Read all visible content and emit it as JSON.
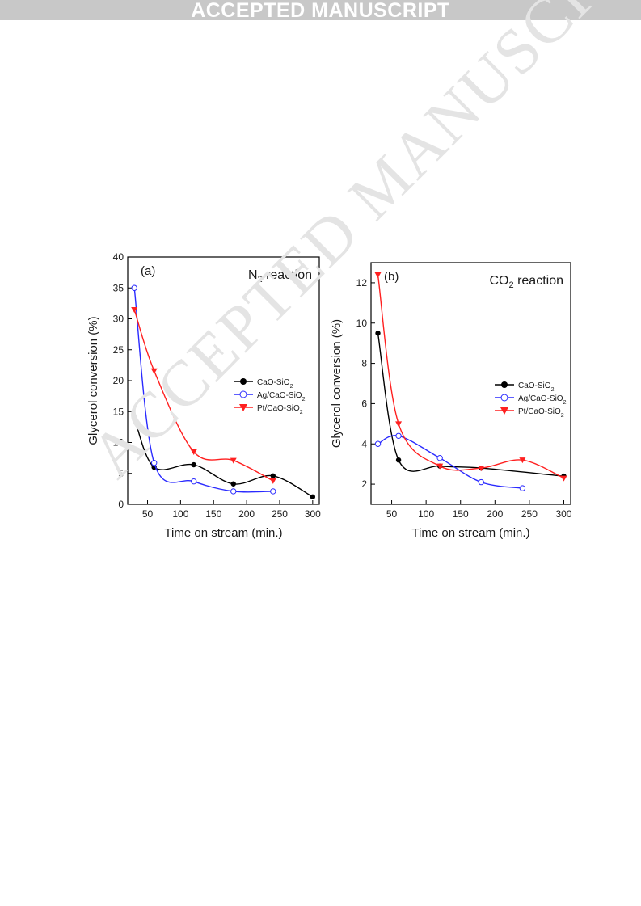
{
  "banner": {
    "text": "ACCEPTED MANUSCRIPT"
  },
  "watermark": {
    "text": "ACCEPTED MANUSCRIPT"
  },
  "colors": {
    "series_black": "#000000",
    "series_blue": "#2a2aff",
    "series_red": "#ff2020",
    "banner_bg": "#c8c8c8"
  },
  "chart_data": [
    {
      "type": "line",
      "panel_label": "(a)",
      "annotation": {
        "main": "N",
        "sub": "2",
        "rest": " reaction"
      },
      "xlabel": "Time on stream (min.)",
      "ylabel": "Glycerol conversion (%)",
      "xlim": [
        20,
        310
      ],
      "ylim": [
        0,
        40
      ],
      "xticks": [
        50,
        100,
        150,
        200,
        250,
        300
      ],
      "yticks": [
        0,
        5,
        10,
        15,
        20,
        25,
        30,
        35,
        40
      ],
      "legend_position": "right-middle",
      "series": [
        {
          "name": "CaO-SiO",
          "name_sub": "2",
          "color": "#000000",
          "marker": "filled-circle",
          "x": [
            30,
            60,
            120,
            180,
            240,
            300
          ],
          "y": [
            14,
            6,
            6.4,
            3.3,
            4.6,
            1.2
          ]
        },
        {
          "name": "Ag/CaO-SiO",
          "name_sub": "2",
          "color": "#2a2aff",
          "marker": "open-circle",
          "x": [
            30,
            60,
            120,
            180,
            240
          ],
          "y": [
            35,
            6.7,
            3.7,
            2.1,
            2.1
          ]
        },
        {
          "name": "Pt/CaO-SiO",
          "name_sub": "2",
          "color": "#ff2020",
          "marker": "down-triangle",
          "x": [
            30,
            60,
            120,
            180,
            240
          ],
          "y": [
            31.5,
            21.6,
            8.5,
            7.1,
            3.8
          ]
        }
      ]
    },
    {
      "type": "line",
      "panel_label": "(b)",
      "annotation": {
        "main": "CO",
        "sub": "2",
        "rest": " reaction"
      },
      "xlabel": "Time on stream (min.)",
      "ylabel": "Glycerol conversion (%)",
      "xlim": [
        20,
        310
      ],
      "ylim": [
        1,
        13
      ],
      "xticks": [
        50,
        100,
        150,
        200,
        250,
        300
      ],
      "yticks": [
        2,
        4,
        6,
        8,
        10,
        12
      ],
      "legend_position": "right-middle",
      "series": [
        {
          "name": "CaO-SiO",
          "name_sub": "2",
          "color": "#000000",
          "marker": "filled-circle",
          "x": [
            30,
            60,
            120,
            180,
            300
          ],
          "y": [
            9.5,
            3.2,
            2.9,
            2.8,
            2.4
          ]
        },
        {
          "name": "Ag/CaO-SiO",
          "name_sub": "2",
          "color": "#2a2aff",
          "marker": "open-circle",
          "x": [
            30,
            60,
            120,
            180,
            240
          ],
          "y": [
            4.0,
            4.4,
            3.3,
            2.1,
            1.8
          ]
        },
        {
          "name": "Pt/CaO-SiO",
          "name_sub": "2",
          "color": "#ff2020",
          "marker": "down-triangle",
          "x": [
            30,
            60,
            120,
            180,
            240,
            300
          ],
          "y": [
            12.4,
            5.0,
            2.9,
            2.8,
            3.2,
            2.3
          ]
        }
      ]
    }
  ]
}
